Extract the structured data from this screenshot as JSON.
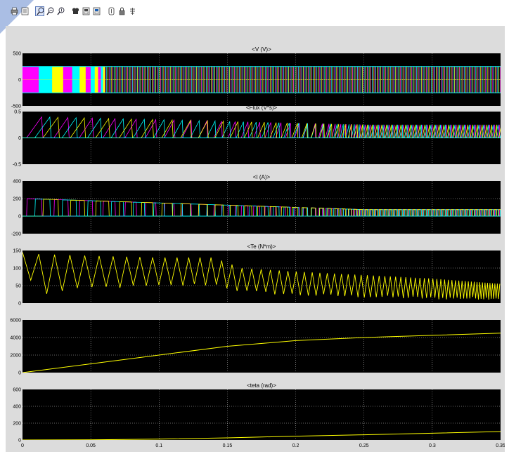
{
  "toolbar": {
    "buttons": [
      {
        "icon": "print-icon"
      },
      {
        "icon": "parameters-icon"
      },
      {
        "icon": "zoom-icon",
        "active": true
      },
      {
        "icon": "zoom-x-icon"
      },
      {
        "icon": "zoom-y-icon"
      },
      {
        "icon": "autoscale-icon"
      },
      {
        "icon": "save-axes-icon"
      },
      {
        "icon": "restore-axes-icon"
      },
      {
        "icon": "floating-scope-icon"
      },
      {
        "icon": "lock-axes-icon"
      },
      {
        "icon": "signal-selector-icon"
      }
    ]
  },
  "colors": {
    "plot_background": "#000000",
    "frame_background": "#dcdcdc",
    "grid": "#ffffff",
    "yellow": "#ffff00",
    "magenta": "#ff00ff",
    "cyan": "#00ffff"
  },
  "chart_data": [
    {
      "type": "line",
      "title": "<V (V)>",
      "xlim": [
        0,
        0.35
      ],
      "ylim": [
        -500,
        500
      ],
      "yticks": [
        "500",
        "0",
        "-500"
      ],
      "ytick_values": [
        500,
        0,
        -500
      ],
      "series": [
        {
          "color": "#ff00ff",
          "description": "phase voltage pulses (PWM, +/-250 V)",
          "amplitude": 250
        },
        {
          "color": "#00ffff",
          "description": "phase voltage pulses (PWM, +/-250 V)",
          "amplitude": 250
        },
        {
          "color": "#ffff00",
          "description": "phase voltage pulses (PWM, +/-250 V)",
          "amplitude": 250
        }
      ]
    },
    {
      "type": "line",
      "title": "<Flux (V*s)>",
      "xlim": [
        0,
        0.35
      ],
      "ylim": [
        -0.5,
        0.5
      ],
      "yticks": [
        "0.5",
        "0",
        "-0.5"
      ],
      "ytick_values": [
        0.5,
        0,
        -0.5
      ],
      "series": [
        {
          "color": "#ff00ff",
          "peak_start": 0.4,
          "peak_end": 0.25
        },
        {
          "color": "#00ffff",
          "peak_start": 0.4,
          "peak_end": 0.25
        },
        {
          "color": "#ffff00",
          "peak_start": 0.4,
          "peak_end": 0.25
        }
      ]
    },
    {
      "type": "line",
      "title": "<I (A)>",
      "xlim": [
        0,
        0.35
      ],
      "ylim": [
        -200,
        400
      ],
      "yticks": [
        "400",
        "200",
        "0",
        "-200"
      ],
      "ytick_values": [
        400,
        200,
        0,
        -200
      ],
      "series": [
        {
          "color": "#ff00ff",
          "peak_start": 200,
          "peak_end": 75
        },
        {
          "color": "#00ffff",
          "peak_start": 200,
          "peak_end": 75
        },
        {
          "color": "#ffff00",
          "peak_start": 200,
          "peak_end": 75
        }
      ]
    },
    {
      "type": "line",
      "title": "<Te (N*m)>",
      "xlim": [
        0,
        0.35
      ],
      "ylim": [
        0,
        150
      ],
      "yticks": [
        "150",
        "100",
        "50",
        "0"
      ],
      "ytick_values": [
        150,
        100,
        50,
        0
      ],
      "series": [
        {
          "color": "#ffff00",
          "x": [
            0,
            0.01,
            0.05,
            0.1,
            0.14,
            0.16,
            0.2,
            0.25,
            0.3,
            0.35
          ],
          "upper": [
            145,
            140,
            135,
            130,
            130,
            100,
            90,
            80,
            70,
            55
          ],
          "lower": [
            120,
            20,
            40,
            45,
            50,
            30,
            20,
            15,
            10,
            10
          ]
        }
      ]
    },
    {
      "type": "line",
      "title": "",
      "xlim": [
        0,
        0.35
      ],
      "ylim": [
        0,
        6000
      ],
      "yticks": [
        "6000",
        "4000",
        "2000",
        "0"
      ],
      "ytick_values": [
        6000,
        4000,
        2000,
        0
      ],
      "series": [
        {
          "color": "#ffff00",
          "x": [
            0,
            0.05,
            0.1,
            0.15,
            0.2,
            0.25,
            0.3,
            0.35
          ],
          "y": [
            0,
            1000,
            2000,
            3000,
            3650,
            4000,
            4250,
            4500
          ]
        }
      ]
    },
    {
      "type": "line",
      "title": "<teta (rad)>",
      "xlim": [
        0,
        0.35
      ],
      "ylim": [
        0,
        600
      ],
      "yticks": [
        "600",
        "400",
        "200",
        "0"
      ],
      "ytick_values": [
        600,
        400,
        200,
        0
      ],
      "xticks": [
        "0",
        "0.05",
        "0.1",
        "0.15",
        "0.2",
        "0.25",
        "0.3",
        "0.35"
      ],
      "xtick_values": [
        0,
        0.05,
        0.1,
        0.15,
        0.2,
        0.25,
        0.3,
        0.35
      ],
      "series": [
        {
          "color": "#ffff00",
          "x": [
            0,
            0.05,
            0.1,
            0.15,
            0.2,
            0.25,
            0.3,
            0.35
          ],
          "y": [
            0,
            2,
            10,
            25,
            45,
            62,
            80,
            100
          ]
        }
      ]
    }
  ]
}
